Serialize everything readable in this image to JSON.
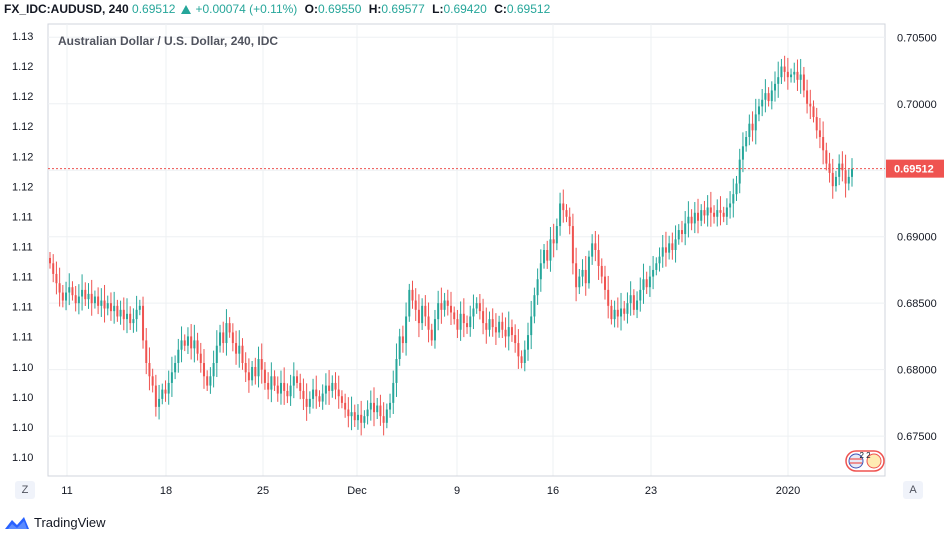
{
  "header": {
    "symbol": "FX_IDC:AUDUSD, 240",
    "price": "0.69512",
    "change": "+0.00074 (+0.11%)",
    "o_label": "O:",
    "o_value": "0.69550",
    "h_label": "H:",
    "h_value": "0.69577",
    "l_label": "L:",
    "l_value": "0.69420",
    "c_label": "C:",
    "c_value": "0.69512"
  },
  "watermark": "Australian Dollar / U.S. Dollar, 240, IDC",
  "footer": {
    "brand": "TradingView"
  },
  "buttons": {
    "left": "Z",
    "right": "A"
  },
  "badge_text": "2 2",
  "colors": {
    "up": "#26a69a",
    "down": "#ef5350",
    "last_price_line": "#ef5350",
    "grid": "#eef0f3",
    "axis_text": "#131722"
  },
  "chart_data": {
    "type": "candlestick",
    "title": "Australian Dollar / U.S. Dollar, 240, IDC",
    "ylim": [
      0.672,
      0.706
    ],
    "y_ticks_right": [
      0.675,
      0.68,
      0.685,
      0.69,
      0.695,
      0.7,
      0.705
    ],
    "y_ticks_right_labels": [
      "0.67500",
      "0.68000",
      "0.68500",
      "0.69000",
      "0.69500",
      "0.70000",
      "0.70500"
    ],
    "y_ticks_left_labels": [
      "1.13",
      "1.12",
      "1.12",
      "1.12",
      "1.12",
      "1.12",
      "1.11",
      "1.11",
      "1.11",
      "1.11",
      "1.11",
      "1.10",
      "1.10",
      "1.10",
      "1.10"
    ],
    "x_tick_labels": [
      "11",
      "18",
      "25",
      "Dec",
      "9",
      "16",
      "23",
      "2020"
    ],
    "last_price": 0.69512,
    "last_price_label": "0.69512",
    "grid": true,
    "closes": [
      0.688,
      0.6872,
      0.6865,
      0.6858,
      0.6852,
      0.6858,
      0.6862,
      0.6856,
      0.685,
      0.6855,
      0.686,
      0.6853,
      0.6857,
      0.685,
      0.6855,
      0.6848,
      0.6852,
      0.6846,
      0.685,
      0.6844,
      0.6848,
      0.684,
      0.6845,
      0.6838,
      0.6842,
      0.6835,
      0.6838,
      0.6845,
      0.6848,
      0.6822,
      0.6805,
      0.6795,
      0.6788,
      0.6772,
      0.6778,
      0.6785,
      0.6782,
      0.679,
      0.6798,
      0.6805,
      0.6815,
      0.6822,
      0.6818,
      0.6825,
      0.6816,
      0.6822,
      0.6812,
      0.6805,
      0.6795,
      0.6788,
      0.6795,
      0.6805,
      0.6818,
      0.6828,
      0.682,
      0.6835,
      0.6828,
      0.682,
      0.6812,
      0.6818,
      0.6805,
      0.6798,
      0.6792,
      0.6802,
      0.6795,
      0.6808,
      0.68,
      0.679,
      0.6785,
      0.6795,
      0.6788,
      0.6782,
      0.679,
      0.6784,
      0.678,
      0.6788,
      0.6795,
      0.679,
      0.6784,
      0.6778,
      0.6772,
      0.6778,
      0.6785,
      0.678,
      0.6776,
      0.6782,
      0.6788,
      0.6784,
      0.679,
      0.6785,
      0.678,
      0.6775,
      0.677,
      0.6765,
      0.6768,
      0.6762,
      0.6766,
      0.676,
      0.6765,
      0.677,
      0.6775,
      0.6768,
      0.6773,
      0.6765,
      0.676,
      0.677,
      0.6775,
      0.679,
      0.6808,
      0.6825,
      0.682,
      0.684,
      0.686,
      0.6852,
      0.6845,
      0.6835,
      0.6848,
      0.684,
      0.683,
      0.6822,
      0.6838,
      0.685,
      0.6845,
      0.6852,
      0.6848,
      0.6843,
      0.6838,
      0.683,
      0.6842,
      0.6835,
      0.6832,
      0.684,
      0.6846,
      0.685,
      0.6844,
      0.6835,
      0.683,
      0.6838,
      0.6832,
      0.6828,
      0.6836,
      0.683,
      0.6825,
      0.6832,
      0.6826,
      0.682,
      0.681,
      0.6805,
      0.6815,
      0.6826,
      0.684,
      0.6856,
      0.6868,
      0.688,
      0.689,
      0.6882,
      0.6898,
      0.6895,
      0.6908,
      0.6925,
      0.692,
      0.6915,
      0.6908,
      0.688,
      0.6862,
      0.687,
      0.6875,
      0.6865,
      0.6885,
      0.6895,
      0.689,
      0.6878,
      0.687,
      0.686,
      0.6848,
      0.6838,
      0.6845,
      0.684,
      0.6846,
      0.6842,
      0.685,
      0.6856,
      0.6845,
      0.6852,
      0.686,
      0.6868,
      0.6862,
      0.687,
      0.6875,
      0.688,
      0.6885,
      0.6892,
      0.6888,
      0.6895,
      0.689,
      0.6898,
      0.6905,
      0.6902,
      0.691,
      0.6915,
      0.691,
      0.6918,
      0.6912,
      0.692,
      0.6916,
      0.6922,
      0.6918,
      0.6915,
      0.692,
      0.6918,
      0.6915,
      0.6922,
      0.6925,
      0.6932,
      0.694,
      0.6958,
      0.6968,
      0.6975,
      0.6985,
      0.698,
      0.6992,
      0.6998,
      0.7003,
      0.7008,
      0.7002,
      0.701,
      0.7015,
      0.702,
      0.7028,
      0.7024,
      0.702,
      0.7022,
      0.7024,
      0.7018,
      0.7022,
      0.701,
      0.7,
      0.6998,
      0.699,
      0.698,
      0.6975,
      0.6965,
      0.6955,
      0.6948,
      0.6938,
      0.6945,
      0.6955,
      0.695,
      0.694,
      0.6945,
      0.6951
    ]
  }
}
